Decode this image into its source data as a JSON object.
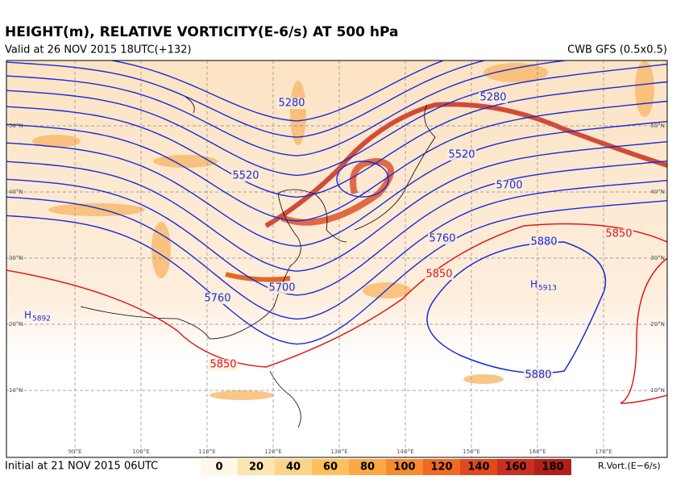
{
  "header": {
    "title": "HEIGHT(m), RELATIVE VORTICITY(E-6/s) AT 500 hPa",
    "valid": "Valid at 26 NOV 2015 18UTC(+132)",
    "model": "CWB GFS (0.5x0.5)"
  },
  "map": {
    "lon_labels": [
      "90°E",
      "100°E",
      "110°E",
      "120°E",
      "130°E",
      "140°E",
      "150°E",
      "160°E",
      "170°E"
    ],
    "lat_labels": [
      "50°N",
      "40°N",
      "30°N",
      "20°N",
      "10°N"
    ],
    "contour_labels": [
      "5280",
      "5280",
      "5520",
      "5520",
      "5700",
      "5700",
      "5760",
      "5760",
      "5880",
      "5880",
      "5850",
      "5850",
      "5850"
    ],
    "highs": [
      {
        "symbol": "H",
        "value": "5913"
      },
      {
        "symbol": "H",
        "value": "5892"
      }
    ]
  },
  "footer": {
    "initial": "Initial at 21 NOV 2015 06UTC",
    "colorbar_labels": [
      0,
      20,
      40,
      60,
      80,
      100,
      120,
      140,
      160,
      180
    ],
    "colorbar_title": "R.Vort.(E−6/s)"
  }
}
